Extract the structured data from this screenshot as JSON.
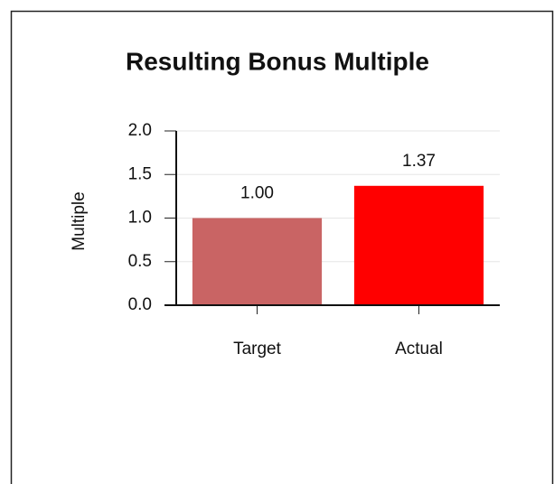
{
  "chart_data": {
    "type": "bar",
    "title": "Resulting Bonus Multiple",
    "ylabel": "Multiple",
    "categories": [
      "Target",
      "Actual"
    ],
    "values": [
      1,
      1.37
    ],
    "value_labels": [
      "1.00",
      "1.37"
    ],
    "colors": [
      "#c96464",
      "#ff0000"
    ],
    "ylim": [
      0,
      2
    ],
    "yticks": [
      {
        "value": 0,
        "label": "0.0"
      },
      0.5,
      {
        "value": 1,
        "label": "1.0"
      },
      1.5,
      {
        "value": 2,
        "label": "2.0"
      }
    ],
    "grid": true
  }
}
